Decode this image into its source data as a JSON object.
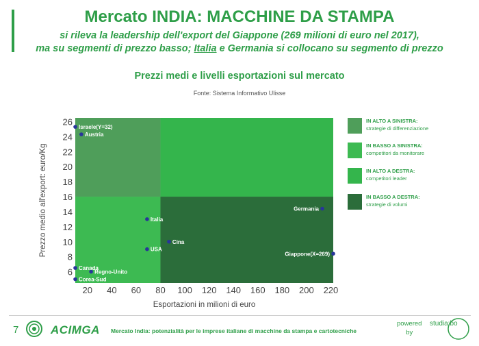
{
  "header": {
    "title": "Mercato INDIA: MACCHINE DA STAMPA",
    "subtitle_line1": "si rileva la leadership dell'export del Giappone (269 milioni di euro nel 2017),",
    "subtitle_line2_pre": "ma su segmenti di prezzo basso; ",
    "subtitle_line2_highlight": "Italia",
    "subtitle_line2_post": " e Germania si collocano su segmento di prezzo"
  },
  "chart_data": {
    "type": "scatter",
    "title": "Prezzi medi e livelli esportazioni sul mercato",
    "source": "Fonte: Sistema Informativo Ulisse",
    "xlabel": "Esportazioni in milioni di euro",
    "ylabel": "Prezzo medio all'export: euro/Kg",
    "xlim": [
      10,
      222
    ],
    "ylim": [
      4.5,
      26.5
    ],
    "xticks": [
      20,
      40,
      60,
      80,
      100,
      120,
      140,
      160,
      180,
      200,
      220
    ],
    "yticks": [
      6,
      8,
      10,
      12,
      14,
      16,
      18,
      20,
      22,
      24,
      26
    ],
    "quadrant_split": {
      "x": 80,
      "y": 16
    },
    "quadrant_colors": {
      "top_left": "#4f9e5a",
      "bottom_left": "#3dba52",
      "top_right": "#34b54c",
      "bottom_right": "#2b6d3a"
    },
    "point_color": "#28359a",
    "points": [
      {
        "label": "Israele(Y=32)",
        "x": 10,
        "y": 25.3
      },
      {
        "label": "Austria",
        "x": 15,
        "y": 24.3
      },
      {
        "label": "Italia",
        "x": 69,
        "y": 13
      },
      {
        "label": "Cina",
        "x": 87,
        "y": 10
      },
      {
        "label": "USA",
        "x": 69,
        "y": 9
      },
      {
        "label": "Germania",
        "x": 213,
        "y": 14.4
      },
      {
        "label": "Giappone(X=269)",
        "x": 222,
        "y": 8.4
      },
      {
        "label": "Canada",
        "x": 10,
        "y": 6.5
      },
      {
        "label": "Regno-Unito",
        "x": 23,
        "y": 6
      },
      {
        "label": "Corea-Sud",
        "x": 10,
        "y": 5
      }
    ],
    "legend": [
      {
        "title": "IN ALTO A SINISTRA:",
        "desc": "strategie di differenziazione",
        "color": "#4f9e5a"
      },
      {
        "title": "IN BASSO A SINISTRA:",
        "desc": "competitori da monitorare",
        "color": "#3dba52"
      },
      {
        "title": "IN ALTO A DESTRA:",
        "desc": "competitori leader",
        "color": "#34b54c"
      },
      {
        "title": "IN BASSO A DESTRA:",
        "desc": "strategie di volumi",
        "color": "#2b6d3a"
      }
    ]
  },
  "footer": {
    "page_number": "7",
    "logo_text": "ACIMGA",
    "text": "Mercato India: potenzialità per le imprese italiane di macchine da stampa e cartotecniche",
    "powered": "powered",
    "by": "by",
    "studia_logo": "studia:bo"
  }
}
